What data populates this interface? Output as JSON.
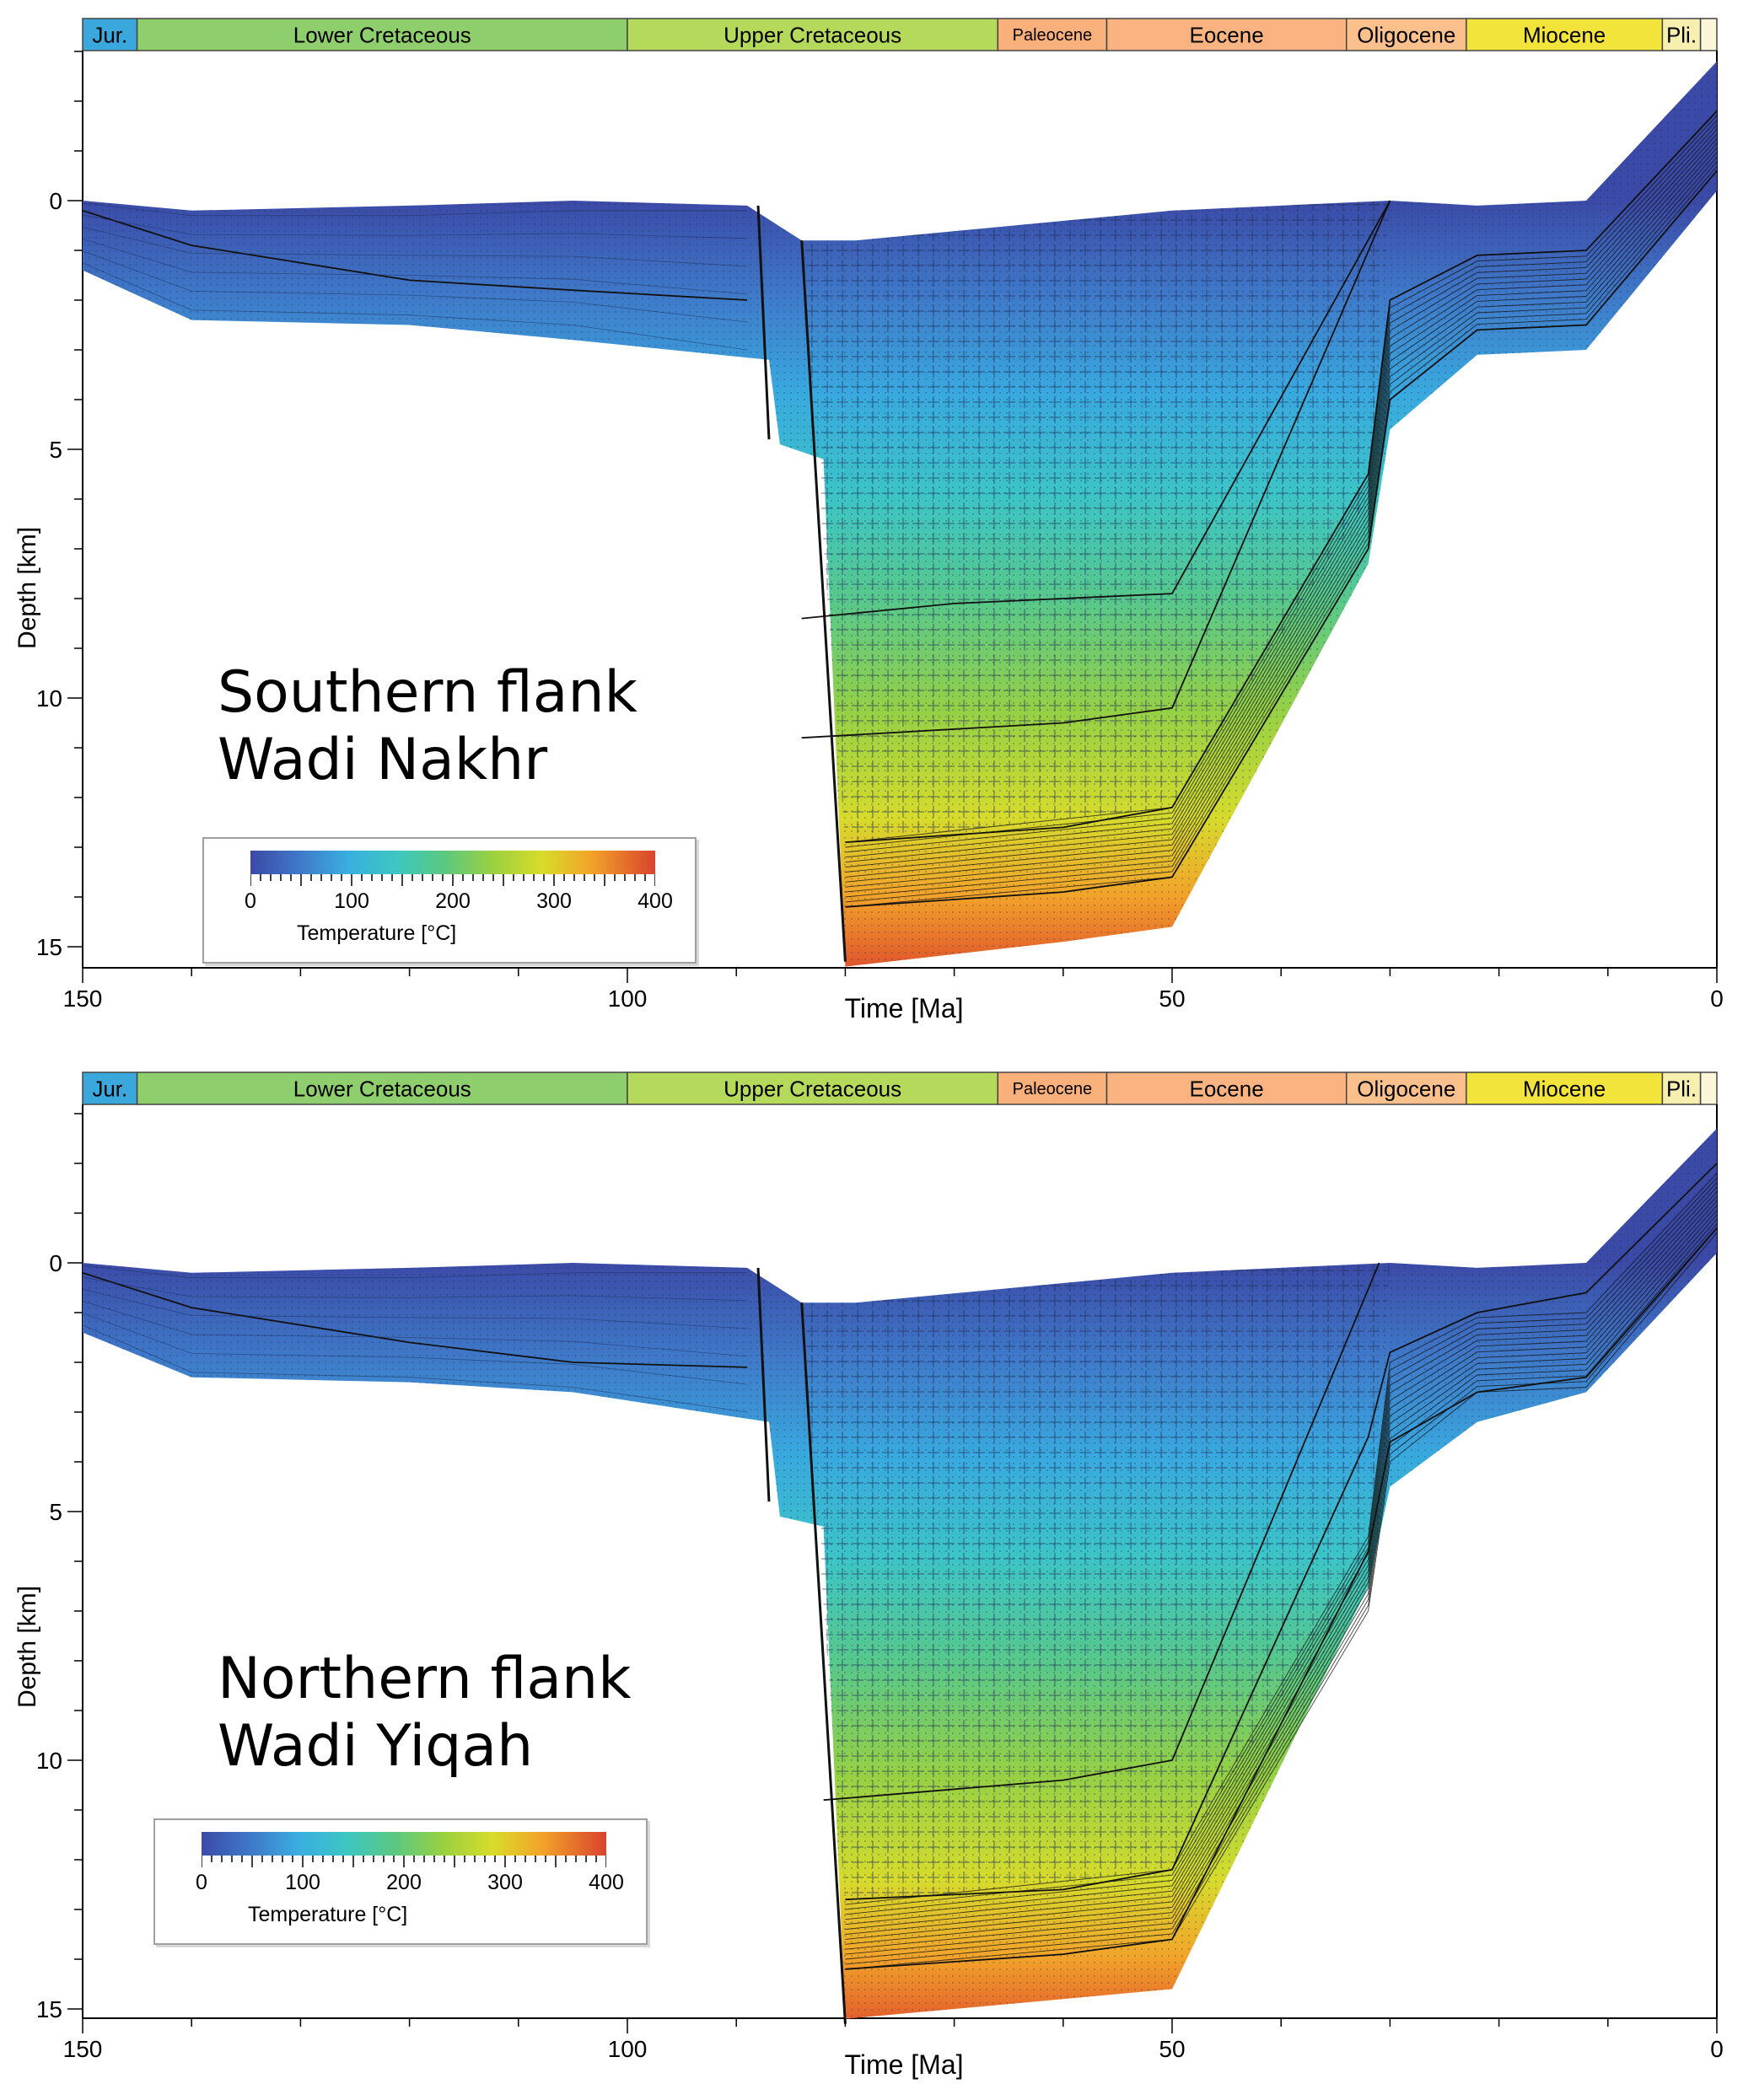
{
  "charts": [
    {
      "annotation": [
        "Southern flank",
        "Wadi Nakhr"
      ],
      "xlabel": "Time [Ma]",
      "ylabel": "Depth [km]",
      "legend_label": "Temperature [°C]"
    },
    {
      "annotation": [
        "Northern flank",
        "Wadi Yiqah"
      ],
      "xlabel": "Time [Ma]",
      "ylabel": "Depth [km]",
      "legend_label": "Temperature [°C]"
    }
  ],
  "chart_data": [
    {
      "type": "area",
      "title": "",
      "xlabel": "Time [Ma]",
      "ylabel": "Depth [km]",
      "xlim": [
        150,
        0
      ],
      "ylim": [
        15.5,
        -3
      ],
      "xticks": [
        150,
        100,
        50,
        0
      ],
      "yticks": [
        0,
        5,
        10,
        15
      ],
      "periods": [
        {
          "name": "Jur.",
          "start": 150,
          "end": 145,
          "color": "#3aa7dd"
        },
        {
          "name": "Lower Cretaceous",
          "start": 145,
          "end": 100,
          "color": "#8fce6c"
        },
        {
          "name": "Upper Cretaceous",
          "start": 100,
          "end": 66,
          "color": "#b5d95a"
        },
        {
          "name": "Paleocene",
          "start": 66,
          "end": 56,
          "color": "#fab07a"
        },
        {
          "name": "Eocene",
          "start": 56,
          "end": 34,
          "color": "#fbb481"
        },
        {
          "name": "Oligocene",
          "start": 34,
          "end": 23,
          "color": "#fcc08c"
        },
        {
          "name": "Miocene",
          "start": 23,
          "end": 5,
          "color": "#f3e43c"
        },
        {
          "name": "Pli.",
          "start": 5,
          "end": 1.5,
          "color": "#f6efb0"
        }
      ],
      "top_surface": [
        [
          150,
          0
        ],
        [
          140,
          0.2
        ],
        [
          120,
          0.1
        ],
        [
          105,
          0
        ],
        [
          89,
          0.1
        ],
        [
          84,
          0.8
        ],
        [
          79,
          0.8
        ],
        [
          50,
          0.2
        ],
        [
          30,
          0
        ],
        [
          22,
          0.1
        ],
        [
          12,
          0
        ],
        [
          0,
          -2.8
        ]
      ],
      "basin_bottom": [
        [
          150,
          1.4
        ],
        [
          140,
          2.4
        ],
        [
          120,
          2.5
        ],
        [
          105,
          2.8
        ],
        [
          87,
          3.2
        ],
        [
          86,
          4.9
        ],
        [
          82,
          5.2
        ],
        [
          80,
          15.4
        ],
        [
          60,
          14.9
        ],
        [
          50,
          14.6
        ],
        [
          32,
          7.3
        ],
        [
          30,
          4.6
        ],
        [
          22,
          3.1
        ],
        [
          12,
          3.0
        ],
        [
          0,
          -0.2
        ]
      ],
      "horizons": [
        [
          [
            150,
            0.2
          ],
          [
            140,
            0.9
          ],
          [
            120,
            1.6
          ],
          [
            105,
            1.8
          ],
          [
            89,
            2.0
          ]
        ],
        [
          [
            84,
            8.4
          ],
          [
            70,
            8.1
          ],
          [
            50,
            7.9
          ],
          [
            30,
            0.0
          ]
        ],
        [
          [
            84,
            10.8
          ],
          [
            60,
            10.5
          ],
          [
            50,
            10.2
          ],
          [
            30,
            0.0
          ]
        ],
        [
          [
            80,
            12.9
          ],
          [
            60,
            12.6
          ],
          [
            50,
            12.2
          ],
          [
            32,
            5.5
          ],
          [
            30,
            2.0
          ],
          [
            22,
            1.1
          ],
          [
            12,
            1.0
          ],
          [
            0,
            -1.8
          ]
        ],
        [
          [
            80,
            14.2
          ],
          [
            60,
            13.9
          ],
          [
            50,
            13.6
          ],
          [
            32,
            7.0
          ],
          [
            30,
            4.0
          ],
          [
            22,
            2.6
          ],
          [
            12,
            2.5
          ],
          [
            0,
            -0.6
          ]
        ]
      ],
      "colorbar": {
        "label": "Temperature [°C]",
        "range": [
          0,
          400
        ],
        "ticks": [
          0,
          100,
          200,
          300,
          400
        ]
      }
    },
    {
      "type": "area",
      "title": "",
      "xlabel": "Time [Ma]",
      "ylabel": "Depth [km]",
      "xlim": [
        150,
        0
      ],
      "ylim": [
        15.5,
        -3
      ],
      "xticks": [
        150,
        100,
        50,
        0
      ],
      "yticks": [
        0,
        5,
        10,
        15
      ],
      "periods": [
        {
          "name": "Jur.",
          "start": 150,
          "end": 145,
          "color": "#3aa7dd"
        },
        {
          "name": "Lower Cretaceous",
          "start": 145,
          "end": 100,
          "color": "#8fce6c"
        },
        {
          "name": "Upper Cretaceous",
          "start": 100,
          "end": 66,
          "color": "#b5d95a"
        },
        {
          "name": "Paleocene",
          "start": 66,
          "end": 56,
          "color": "#fab07a"
        },
        {
          "name": "Eocene",
          "start": 56,
          "end": 34,
          "color": "#fbb481"
        },
        {
          "name": "Oligocene",
          "start": 34,
          "end": 23,
          "color": "#fcc08c"
        },
        {
          "name": "Miocene",
          "start": 23,
          "end": 5,
          "color": "#f3e43c"
        },
        {
          "name": "Pli.",
          "start": 5,
          "end": 1.5,
          "color": "#f6efb0"
        }
      ],
      "top_surface": [
        [
          150,
          0
        ],
        [
          140,
          0.2
        ],
        [
          120,
          0.1
        ],
        [
          105,
          0
        ],
        [
          89,
          0.1
        ],
        [
          84,
          0.8
        ],
        [
          79,
          0.8
        ],
        [
          50,
          0.2
        ],
        [
          30,
          0
        ],
        [
          22,
          0.1
        ],
        [
          12,
          0
        ],
        [
          0,
          -2.7
        ]
      ],
      "basin_bottom": [
        [
          150,
          1.4
        ],
        [
          140,
          2.3
        ],
        [
          120,
          2.4
        ],
        [
          105,
          2.6
        ],
        [
          87,
          3.2
        ],
        [
          86,
          5.1
        ],
        [
          82,
          5.3
        ],
        [
          80,
          15.2
        ],
        [
          60,
          14.8
        ],
        [
          50,
          14.6
        ],
        [
          32,
          6.5
        ],
        [
          30,
          4.5
        ],
        [
          22,
          3.2
        ],
        [
          12,
          2.6
        ],
        [
          0,
          -0.2
        ]
      ],
      "horizons": [
        [
          [
            150,
            0.2
          ],
          [
            140,
            0.9
          ],
          [
            120,
            1.6
          ],
          [
            105,
            2.0
          ],
          [
            89,
            2.1
          ]
        ],
        [
          [
            82,
            10.8
          ],
          [
            60,
            10.4
          ],
          [
            50,
            10.0
          ],
          [
            31,
            0.0
          ]
        ],
        [
          [
            80,
            12.8
          ],
          [
            60,
            12.6
          ],
          [
            50,
            12.2
          ],
          [
            32,
            3.5
          ],
          [
            30,
            1.8
          ],
          [
            22,
            1.0
          ],
          [
            12,
            0.6
          ],
          [
            0,
            -2.0
          ]
        ],
        [
          [
            80,
            14.2
          ],
          [
            60,
            13.9
          ],
          [
            50,
            13.6
          ],
          [
            32,
            5.8
          ],
          [
            30,
            3.6
          ],
          [
            22,
            2.6
          ],
          [
            12,
            2.3
          ],
          [
            0,
            -0.7
          ]
        ]
      ],
      "colorbar": {
        "label": "Temperature [°C]",
        "range": [
          0,
          400
        ],
        "ticks": [
          0,
          100,
          200,
          300,
          400
        ]
      }
    }
  ]
}
